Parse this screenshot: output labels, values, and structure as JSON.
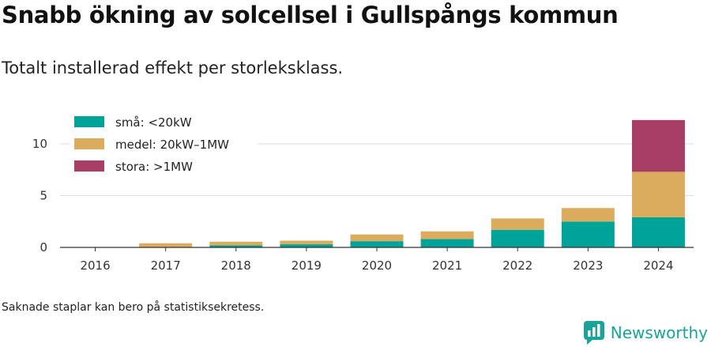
{
  "title": "Snabb ökning av solcellsel i Gullspångs kommun",
  "subtitle": "Totalt installerad effekt per storleksklass.",
  "footnote": "Saknade staplar kan bero på statistiksekretess.",
  "brand": {
    "name": "Newsworthy",
    "icon": "newsworthy-logo-icon",
    "color": "#1aa39a"
  },
  "chart_data": {
    "type": "bar",
    "stacked": true,
    "categories": [
      "2016",
      "2017",
      "2018",
      "2019",
      "2020",
      "2021",
      "2022",
      "2023",
      "2024"
    ],
    "series": [
      {
        "name": "små: <20kW",
        "color": "#00a398",
        "values": [
          0.0,
          0.05,
          0.2,
          0.3,
          0.6,
          0.8,
          1.7,
          2.5,
          2.9
        ]
      },
      {
        "name": "medel: 20kW–1MW",
        "color": "#dbac5e",
        "values": [
          0.0,
          0.35,
          0.35,
          0.35,
          0.65,
          0.75,
          1.1,
          1.3,
          4.4
        ]
      },
      {
        "name": "stora: >1MW",
        "color": "#a83e66",
        "values": [
          0.0,
          0.0,
          0.0,
          0.0,
          0.0,
          0.0,
          0.0,
          0.0,
          5.0
        ]
      }
    ],
    "yticks": [
      0,
      5,
      10
    ],
    "ylim": [
      0,
      13
    ],
    "grid": true,
    "legend_position": "top-left"
  }
}
